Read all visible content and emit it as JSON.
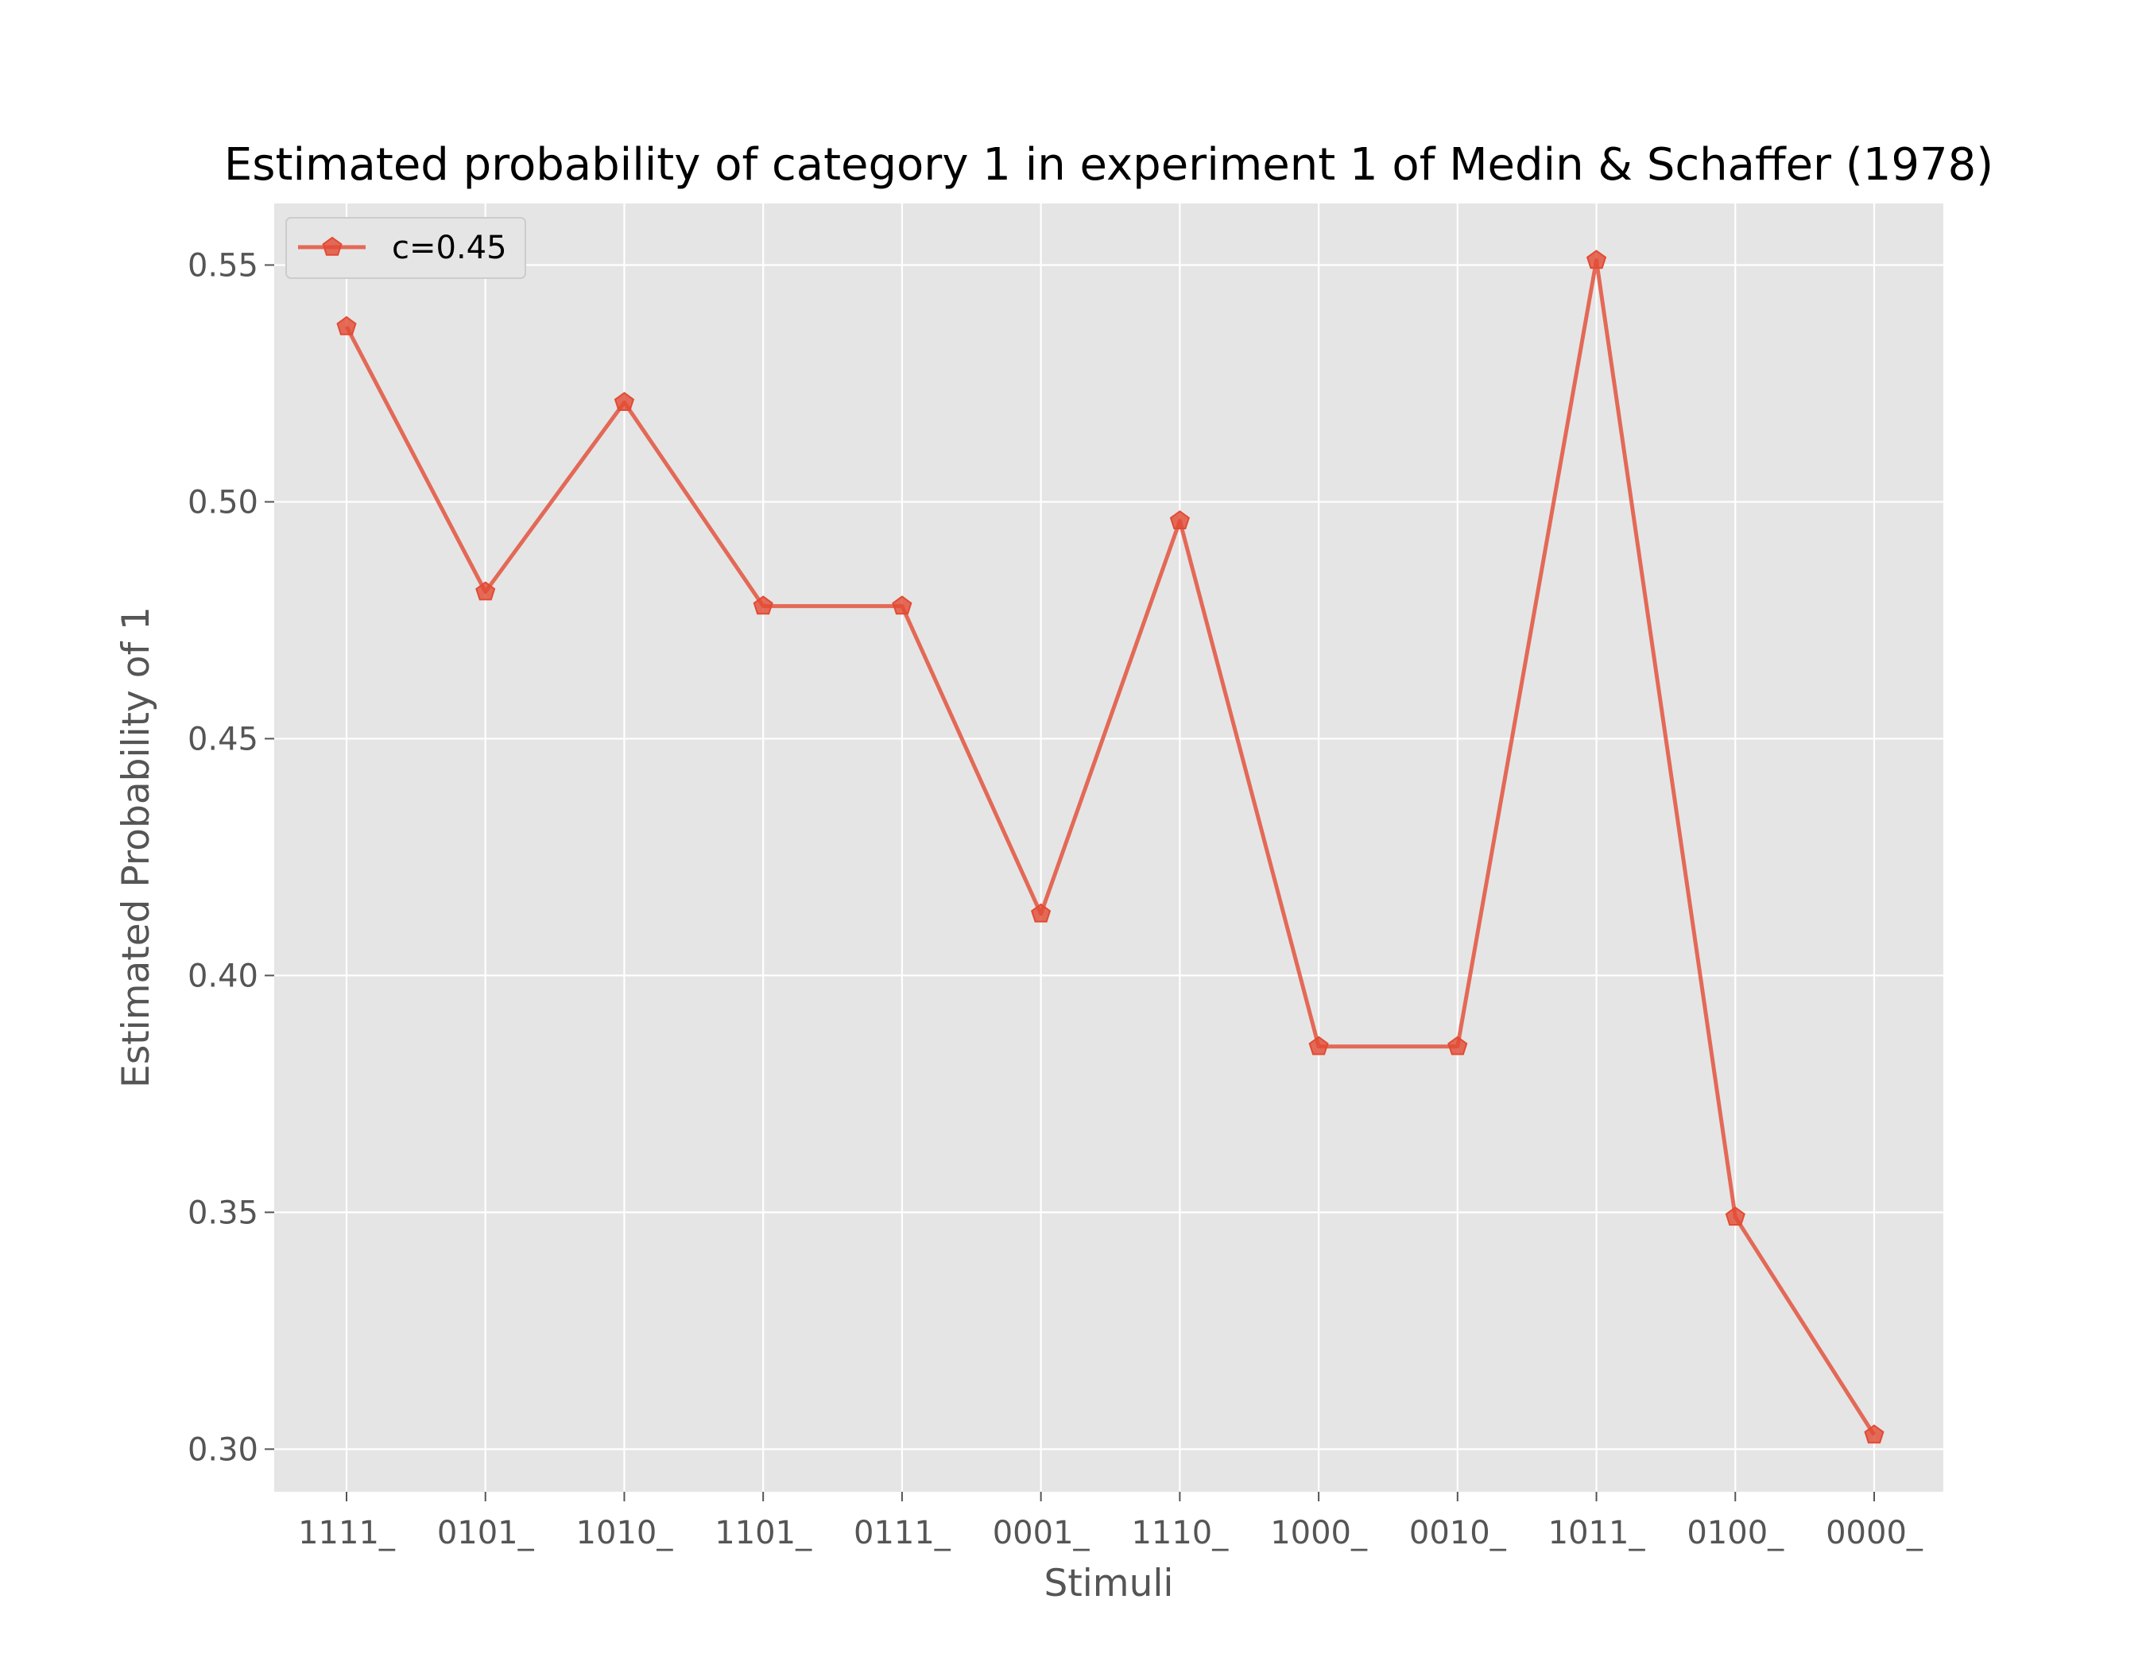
{
  "chart_data": {
    "type": "line",
    "title": "Estimated probability of category 1 in experiment 1 of Medin & Schaffer (1978)",
    "xlabel": "Stimuli",
    "ylabel": "Estimated Probability of 1",
    "categories": [
      "1111_",
      "0101_",
      "1010_",
      "1101_",
      "0111_",
      "0001_",
      "1110_",
      "1000_",
      "0010_",
      "1011_",
      "0100_",
      "0000_"
    ],
    "series": [
      {
        "name": "c=0.45",
        "color": "#E24A33",
        "marker": "pentagon",
        "values": [
          0.537,
          0.481,
          0.521,
          0.478,
          0.478,
          0.413,
          0.496,
          0.385,
          0.385,
          0.551,
          0.349,
          0.303
        ]
      }
    ],
    "ylim": [
      0.291,
      0.563
    ],
    "yticks": [
      0.3,
      0.35,
      0.4,
      0.45,
      0.5,
      0.55
    ],
    "ytick_labels": [
      "0.30",
      "0.35",
      "0.40",
      "0.45",
      "0.50",
      "0.55"
    ],
    "grid": true,
    "legend_position": "top-left",
    "style": {
      "axes_facecolor": "#E5E5E5",
      "grid_color": "#FFFFFF",
      "text_color": "#555555"
    }
  }
}
